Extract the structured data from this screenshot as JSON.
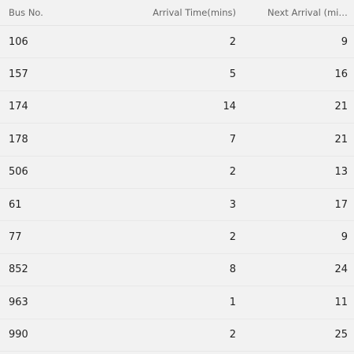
{
  "table": {
    "columns": {
      "bus": "Bus No.",
      "arrival": "Arrival Time(mins)",
      "next": "Next Arrival (mins)"
    },
    "rows": [
      {
        "bus": "106",
        "arrival": "2",
        "next": "9"
      },
      {
        "bus": "157",
        "arrival": "5",
        "next": "16"
      },
      {
        "bus": "174",
        "arrival": "14",
        "next": "21"
      },
      {
        "bus": "178",
        "arrival": "7",
        "next": "21"
      },
      {
        "bus": "506",
        "arrival": "2",
        "next": "13"
      },
      {
        "bus": "61",
        "arrival": "3",
        "next": "17"
      },
      {
        "bus": "77",
        "arrival": "2",
        "next": "9"
      },
      {
        "bus": "852",
        "arrival": "8",
        "next": "24"
      },
      {
        "bus": "963",
        "arrival": "1",
        "next": "11"
      },
      {
        "bus": "990",
        "arrival": "2",
        "next": "25"
      }
    ]
  }
}
